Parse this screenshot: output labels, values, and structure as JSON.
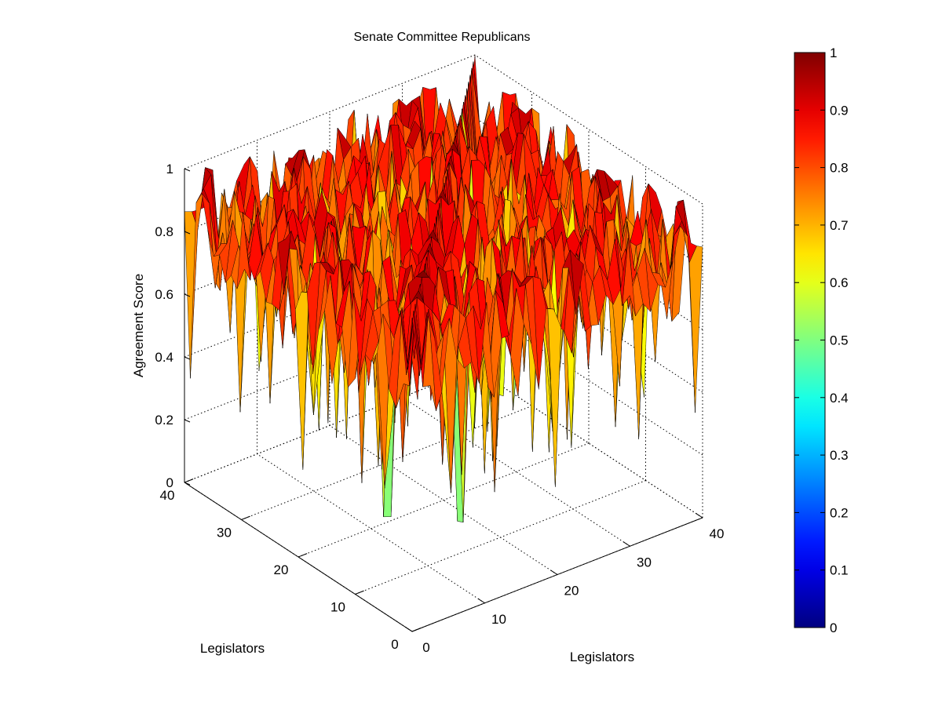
{
  "chart_data": {
    "type": "surface",
    "title": "Senate Committee Republicans",
    "xlabel": "Legislators",
    "ylabel": "Legislators",
    "zlabel": "Agreement Score",
    "xlim": [
      0,
      40
    ],
    "ylim": [
      0,
      40
    ],
    "zlim": [
      0,
      1
    ],
    "x_ticks": [
      "0",
      "10",
      "20",
      "30",
      "40"
    ],
    "y_ticks": [
      "0",
      "10",
      "20",
      "30",
      "40"
    ],
    "z_ticks": [
      "0",
      "0.2",
      "0.4",
      "0.6",
      "0.8",
      "1"
    ],
    "grid": true,
    "colormap": "jet",
    "colorbar": {
      "range": [
        0,
        1
      ],
      "ticks": [
        "0",
        "0.1",
        "0.2",
        "0.3",
        "0.4",
        "0.5",
        "0.6",
        "0.7",
        "0.8",
        "0.9",
        "1"
      ]
    },
    "n_legislators": 40,
    "diagonal_value": 1.0,
    "offdiagonal_range_estimate": [
      0.15,
      1.0
    ],
    "offdiagonal_typical": 0.82,
    "colors": {
      "edge": "#000000",
      "grid": "#000000",
      "background": "#ffffff"
    }
  }
}
